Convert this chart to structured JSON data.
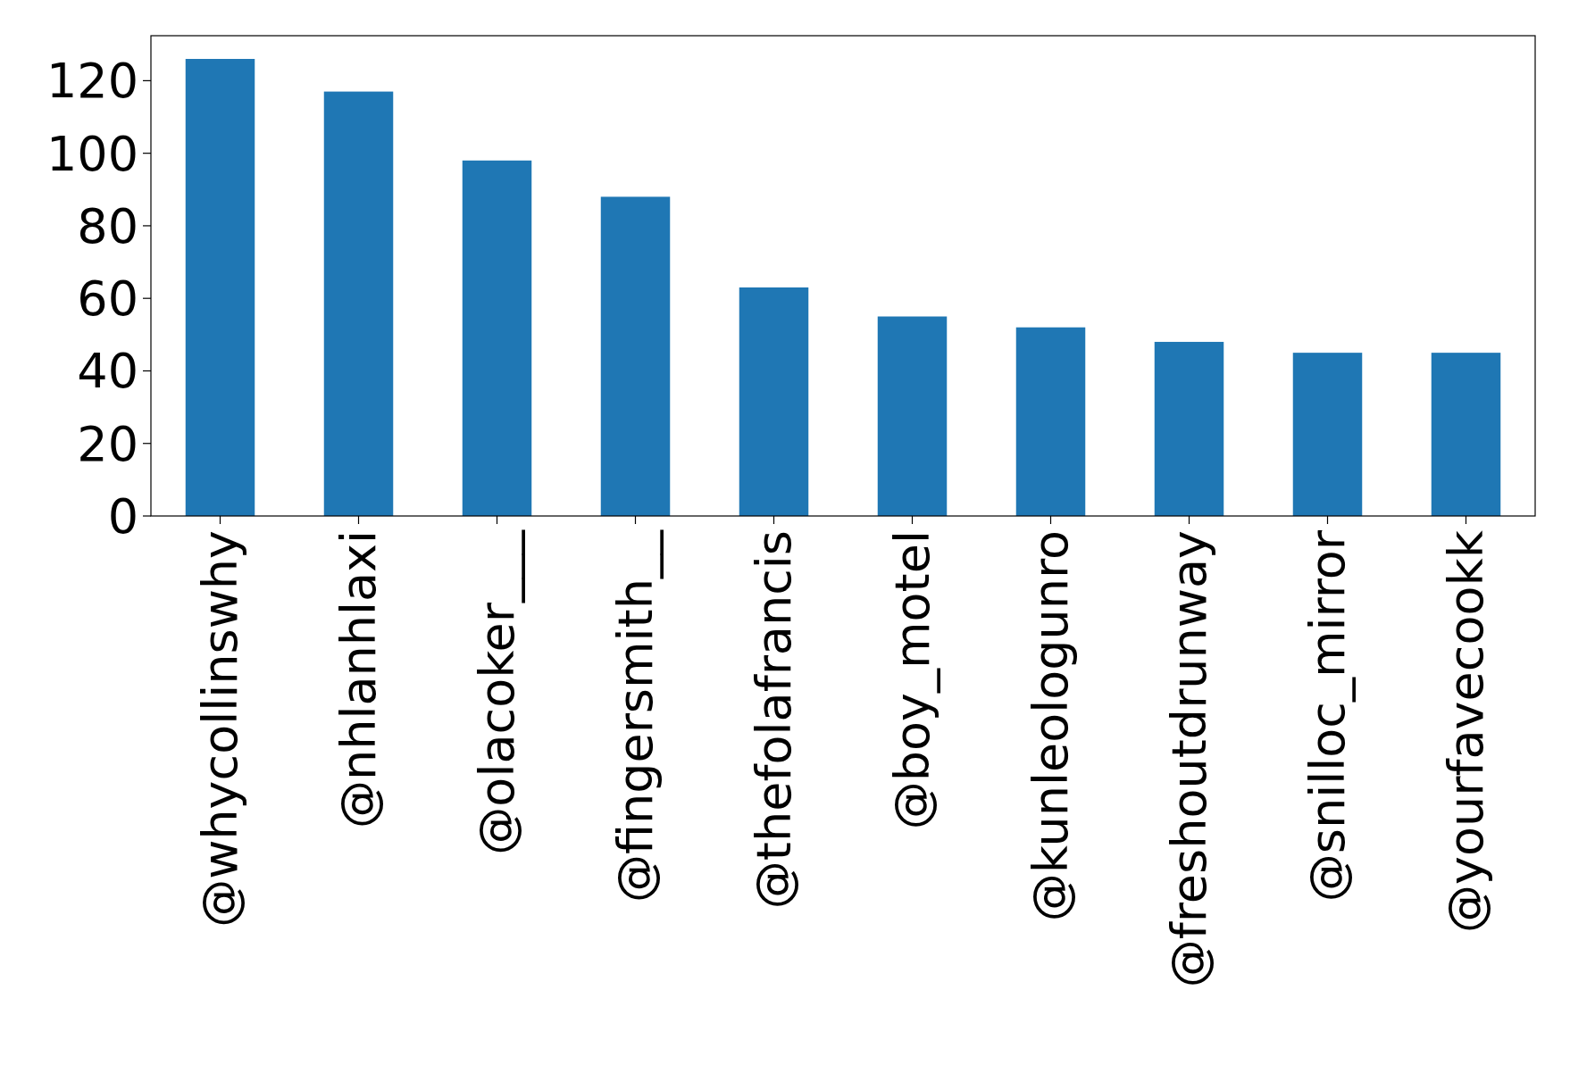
{
  "chart_data": {
    "type": "bar",
    "categories": [
      "@whycollinswhy",
      "@nhlanhlaxi",
      "@olacoker___",
      "@fingersmith__",
      "@thefolafrancis",
      "@boy_motel",
      "@kunleologunro",
      "@freshoutdrunway",
      "@snilloc_mirror",
      "@yourfavecookk"
    ],
    "values": [
      126,
      117,
      98,
      88,
      63,
      55,
      52,
      48,
      45,
      45
    ],
    "color": "#1f77b4",
    "ylim": [
      0,
      132.4
    ],
    "yticks": [
      0,
      20,
      40,
      60,
      80,
      100,
      120
    ],
    "grid": false
  }
}
